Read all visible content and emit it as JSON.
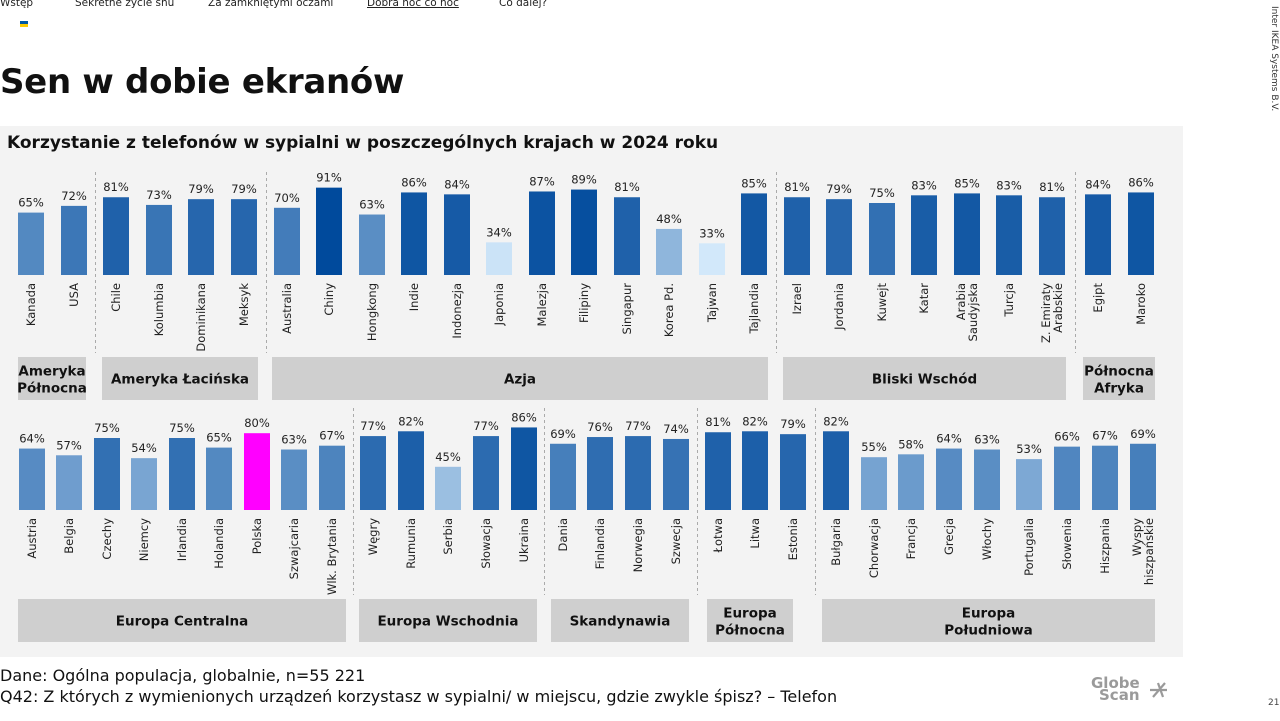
{
  "nav": {
    "items": [
      "Wstęp",
      "Sekretne życie snu",
      "Za zamkniętymi oczami",
      "Dobra noc co noc",
      "Co dalej?"
    ],
    "active_index": 3
  },
  "page": {
    "title": "Sen w dobie ekranów",
    "side_text": "Inter IKEA Systems B.V.",
    "page_number": "21"
  },
  "footer": {
    "line1": "Dane: Ogólna populacja, globalnie, n=55 221",
    "line2": "Q42: Z których z wymienionych urządzeń korzystasz w sypialni/ w miejscu, gdzie zwykle śpisz? – Telefon"
  },
  "logo": {
    "line1": "Globe",
    "line2": "Scan"
  },
  "colors": {
    "panel_bg": "#f3f3f3",
    "region_box": "#cfcfcf",
    "highlight": "#ff00ff",
    "scale_light": "#d2e8fa",
    "scale_dark": "#004a9c",
    "divider": "#aaaaaa"
  },
  "chart_data": {
    "type": "bar",
    "title": "Korzystanie z telefonów w sypialni w poszczególnych krajach w 2024 roku",
    "unit": "%",
    "highlight_category": "Polska",
    "rows": [
      {
        "regions": [
          {
            "name": "Ameryka Północna",
            "categories": [
              "Kanada",
              "USA"
            ],
            "values": [
              65,
              72
            ]
          },
          {
            "name": "Ameryka Łacińska",
            "categories": [
              "Chile",
              "Kolumbia",
              "Dominikana",
              "Meksyk"
            ],
            "values": [
              81,
              73,
              79,
              79
            ]
          },
          {
            "name": "Azja",
            "categories": [
              "Australia",
              "Chiny",
              "Hongkong",
              "Indie",
              "Indonezja",
              "Japonia",
              "Malezja",
              "Filipiny",
              "Singapur",
              "Korea Pd.",
              "Tajwan",
              "Tajlandia"
            ],
            "values": [
              70,
              91,
              63,
              86,
              84,
              34,
              87,
              89,
              81,
              48,
              33,
              85
            ]
          },
          {
            "name": "Bliski Wschód",
            "categories": [
              "Izrael",
              "Jordania",
              "Kuwejt",
              "Katar",
              "Arabia Saudyjska",
              "Turcja",
              "Z. Emiraty Arabskie"
            ],
            "values": [
              81,
              79,
              75,
              83,
              85,
              83,
              81
            ]
          },
          {
            "name": "Północna Afryka",
            "categories": [
              "Egipt",
              "Maroko"
            ],
            "values": [
              84,
              86
            ]
          }
        ]
      },
      {
        "regions": [
          {
            "name": "Europa Centralna",
            "categories": [
              "Austria",
              "Belgia",
              "Czechy",
              "Niemcy",
              "Irlandia",
              "Holandia",
              "Polska",
              "Szwajcaria",
              "Wlk. Brytania"
            ],
            "values": [
              64,
              57,
              75,
              54,
              75,
              65,
              80,
              63,
              67
            ]
          },
          {
            "name": "Europa Wschodnia",
            "categories": [
              "Węgry",
              "Rumunia",
              "Serbia",
              "Słowacja",
              "Ukraina"
            ],
            "values": [
              77,
              82,
              45,
              77,
              86
            ]
          },
          {
            "name": "Skandynawia",
            "categories": [
              "Dania",
              "Finlandia",
              "Norwegia",
              "Szwecja"
            ],
            "values": [
              69,
              76,
              77,
              74
            ]
          },
          {
            "name": "Europa Północna",
            "categories": [
              "Łotwa",
              "Litwa",
              "Estonia"
            ],
            "values": [
              81,
              82,
              79
            ]
          },
          {
            "name": "Europa Południowa",
            "categories": [
              "Bułgaria",
              "Chorwacja",
              "Francja",
              "Grecja",
              "Włochy",
              "Portugalia",
              "Słowenia",
              "Hiszpania",
              "Wyspy hiszpańskie"
            ],
            "values": [
              82,
              55,
              58,
              64,
              63,
              53,
              66,
              67,
              69
            ]
          }
        ]
      }
    ]
  }
}
